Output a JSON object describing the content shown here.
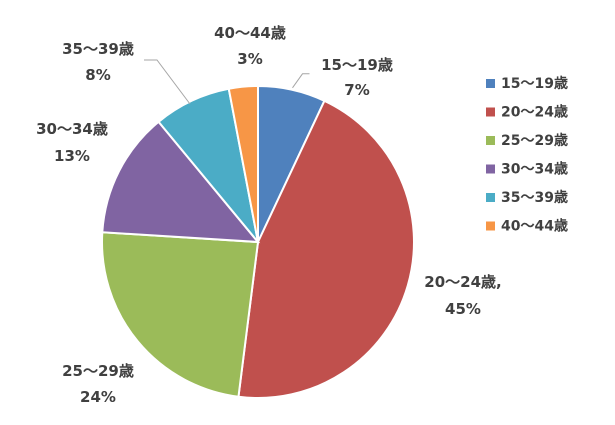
{
  "chart_data": {
    "type": "pie",
    "title": "",
    "slices": [
      {
        "category": "15～19歳",
        "value": 7,
        "label_name": "15～19歳",
        "label_value": "7%",
        "color": "#4F81BD"
      },
      {
        "category": "20～24歳",
        "value": 45,
        "label_name": "20～24歳,",
        "label_value": "45%",
        "color": "#C0504D"
      },
      {
        "category": "25～29歳",
        "value": 24,
        "label_name": "25～29歳",
        "label_value": "24%",
        "color": "#9BBB59"
      },
      {
        "category": "30～34歳",
        "value": 13,
        "label_name": "30～34歳",
        "label_value": "13%",
        "color": "#8064A2"
      },
      {
        "category": "35～39歳",
        "value": 8,
        "label_name": "35～39歳",
        "label_value": "8%",
        "color": "#4BACC6"
      },
      {
        "category": "40～44歳",
        "value": 3,
        "label_name": "40～44歳",
        "label_value": "3%",
        "color": "#F79646"
      }
    ],
    "legend_position": "right",
    "start_angle": "top, clockwise"
  }
}
